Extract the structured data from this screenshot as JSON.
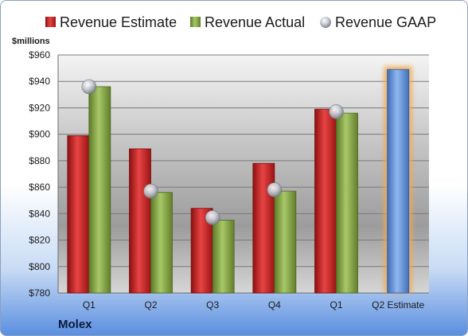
{
  "company": "Molex",
  "chart_data": {
    "type": "bar",
    "ylabel": "$millions",
    "ylim": [
      780,
      960
    ],
    "ytick_step": 20,
    "y_prefix": "$",
    "grid": true,
    "legend_position": "top",
    "categories": [
      "Q1",
      "Q2",
      "Q3",
      "Q4",
      "Q1",
      "Q2 Estimate"
    ],
    "series": [
      {
        "name": "Revenue Estimate",
        "kind": "bar",
        "color": "#d42a2a",
        "values": [
          899,
          889,
          844,
          878,
          919,
          949
        ]
      },
      {
        "name": "Revenue Actual",
        "kind": "bar",
        "color": "#8eb04a",
        "values": [
          936,
          856,
          835,
          857,
          916,
          null
        ]
      },
      {
        "name": "Revenue GAAP",
        "kind": "marker",
        "color": "#b8bcc4",
        "values": [
          936,
          857,
          837,
          858,
          917,
          null
        ]
      }
    ],
    "highlight": {
      "category_index": 5,
      "color": "#6a9ee0",
      "glow": "#f2a850"
    }
  }
}
